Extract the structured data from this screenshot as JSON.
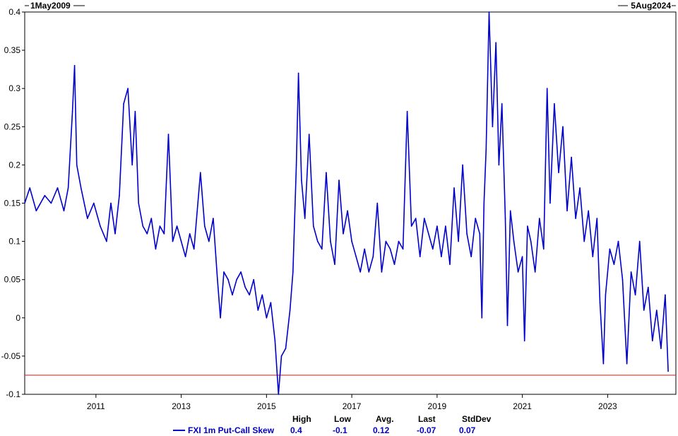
{
  "date_range": {
    "start": "1May2009",
    "end": "5Aug2024"
  },
  "chart_data": {
    "type": "line",
    "title": "",
    "xlabel": "",
    "ylabel": "",
    "ylim": [
      -0.1,
      0.4
    ],
    "xlim": [
      2009.33,
      2024.6
    ],
    "y_ticks": [
      {
        "value": 0.4,
        "label": "0.4"
      },
      {
        "value": 0.35,
        "label": "0.35"
      },
      {
        "value": 0.3,
        "label": "0.3"
      },
      {
        "value": 0.25,
        "label": "0.25"
      },
      {
        "value": 0.2,
        "label": "0.2"
      },
      {
        "value": 0.15,
        "label": "0.15"
      },
      {
        "value": 0.1,
        "label": "0.1"
      },
      {
        "value": 0.05,
        "label": "0.05"
      },
      {
        "value": 0,
        "label": "0"
      },
      {
        "value": -0.05,
        "label": "-0.05"
      },
      {
        "value": -0.1,
        "label": "-0.1"
      }
    ],
    "x_ticks": [
      {
        "value": 2011,
        "label": "2011"
      },
      {
        "value": 2013,
        "label": "2013"
      },
      {
        "value": 2015,
        "label": "2015"
      },
      {
        "value": 2017,
        "label": "2017"
      },
      {
        "value": 2019,
        "label": "2019"
      },
      {
        "value": 2021,
        "label": "2021"
      },
      {
        "value": 2023,
        "label": "2023"
      }
    ],
    "reference_line": {
      "value": -0.075,
      "color": "#c0392b"
    },
    "grid": false,
    "legend_position": "bottom",
    "series": [
      {
        "name": "FXI 1m Put-Call Skew",
        "color": "#0000cc",
        "points": [
          [
            2009.33,
            0.15
          ],
          [
            2009.45,
            0.17
          ],
          [
            2009.6,
            0.14
          ],
          [
            2009.8,
            0.16
          ],
          [
            2009.95,
            0.15
          ],
          [
            2010.1,
            0.17
          ],
          [
            2010.25,
            0.14
          ],
          [
            2010.35,
            0.17
          ],
          [
            2010.45,
            0.27
          ],
          [
            2010.5,
            0.33
          ],
          [
            2010.55,
            0.2
          ],
          [
            2010.65,
            0.17
          ],
          [
            2010.8,
            0.13
          ],
          [
            2010.95,
            0.15
          ],
          [
            2011.1,
            0.12
          ],
          [
            2011.25,
            0.1
          ],
          [
            2011.35,
            0.15
          ],
          [
            2011.45,
            0.11
          ],
          [
            2011.55,
            0.16
          ],
          [
            2011.65,
            0.28
          ],
          [
            2011.75,
            0.3
          ],
          [
            2011.85,
            0.2
          ],
          [
            2011.92,
            0.27
          ],
          [
            2012.0,
            0.15
          ],
          [
            2012.1,
            0.12
          ],
          [
            2012.2,
            0.11
          ],
          [
            2012.3,
            0.13
          ],
          [
            2012.4,
            0.09
          ],
          [
            2012.5,
            0.12
          ],
          [
            2012.6,
            0.11
          ],
          [
            2012.7,
            0.24
          ],
          [
            2012.8,
            0.1
          ],
          [
            2012.9,
            0.12
          ],
          [
            2013.0,
            0.1
          ],
          [
            2013.1,
            0.08
          ],
          [
            2013.2,
            0.11
          ],
          [
            2013.3,
            0.09
          ],
          [
            2013.45,
            0.19
          ],
          [
            2013.55,
            0.12
          ],
          [
            2013.65,
            0.1
          ],
          [
            2013.75,
            0.13
          ],
          [
            2013.85,
            0.05
          ],
          [
            2013.92,
            0.0
          ],
          [
            2014.0,
            0.06
          ],
          [
            2014.1,
            0.05
          ],
          [
            2014.2,
            0.03
          ],
          [
            2014.3,
            0.05
          ],
          [
            2014.4,
            0.06
          ],
          [
            2014.5,
            0.04
          ],
          [
            2014.6,
            0.03
          ],
          [
            2014.7,
            0.05
          ],
          [
            2014.8,
            0.01
          ],
          [
            2014.9,
            0.03
          ],
          [
            2015.0,
            0.0
          ],
          [
            2015.1,
            0.02
          ],
          [
            2015.2,
            -0.03
          ],
          [
            2015.28,
            -0.1
          ],
          [
            2015.35,
            -0.05
          ],
          [
            2015.45,
            -0.04
          ],
          [
            2015.55,
            0.01
          ],
          [
            2015.62,
            0.06
          ],
          [
            2015.7,
            0.2
          ],
          [
            2015.75,
            0.32
          ],
          [
            2015.82,
            0.18
          ],
          [
            2015.9,
            0.13
          ],
          [
            2016.0,
            0.24
          ],
          [
            2016.1,
            0.12
          ],
          [
            2016.2,
            0.1
          ],
          [
            2016.3,
            0.09
          ],
          [
            2016.4,
            0.19
          ],
          [
            2016.5,
            0.1
          ],
          [
            2016.6,
            0.07
          ],
          [
            2016.7,
            0.18
          ],
          [
            2016.8,
            0.11
          ],
          [
            2016.9,
            0.14
          ],
          [
            2017.0,
            0.1
          ],
          [
            2017.1,
            0.08
          ],
          [
            2017.2,
            0.06
          ],
          [
            2017.3,
            0.09
          ],
          [
            2017.4,
            0.06
          ],
          [
            2017.5,
            0.08
          ],
          [
            2017.6,
            0.15
          ],
          [
            2017.7,
            0.06
          ],
          [
            2017.8,
            0.1
          ],
          [
            2017.9,
            0.09
          ],
          [
            2018.0,
            0.07
          ],
          [
            2018.1,
            0.1
          ],
          [
            2018.2,
            0.09
          ],
          [
            2018.3,
            0.27
          ],
          [
            2018.4,
            0.12
          ],
          [
            2018.5,
            0.13
          ],
          [
            2018.6,
            0.08
          ],
          [
            2018.7,
            0.13
          ],
          [
            2018.8,
            0.11
          ],
          [
            2018.9,
            0.09
          ],
          [
            2019.0,
            0.12
          ],
          [
            2019.1,
            0.08
          ],
          [
            2019.2,
            0.12
          ],
          [
            2019.3,
            0.07
          ],
          [
            2019.4,
            0.17
          ],
          [
            2019.5,
            0.1
          ],
          [
            2019.6,
            0.2
          ],
          [
            2019.7,
            0.11
          ],
          [
            2019.8,
            0.08
          ],
          [
            2019.9,
            0.13
          ],
          [
            2020.0,
            0.11
          ],
          [
            2020.05,
            0.0
          ],
          [
            2020.1,
            0.15
          ],
          [
            2020.15,
            0.22
          ],
          [
            2020.22,
            0.4
          ],
          [
            2020.3,
            0.25
          ],
          [
            2020.38,
            0.36
          ],
          [
            2020.45,
            0.2
          ],
          [
            2020.52,
            0.28
          ],
          [
            2020.6,
            0.13
          ],
          [
            2020.65,
            -0.01
          ],
          [
            2020.72,
            0.14
          ],
          [
            2020.8,
            0.1
          ],
          [
            2020.9,
            0.06
          ],
          [
            2021.0,
            0.08
          ],
          [
            2021.05,
            -0.03
          ],
          [
            2021.12,
            0.12
          ],
          [
            2021.2,
            0.1
          ],
          [
            2021.3,
            0.06
          ],
          [
            2021.4,
            0.13
          ],
          [
            2021.5,
            0.09
          ],
          [
            2021.58,
            0.3
          ],
          [
            2021.65,
            0.15
          ],
          [
            2021.75,
            0.28
          ],
          [
            2021.85,
            0.19
          ],
          [
            2021.95,
            0.25
          ],
          [
            2022.05,
            0.14
          ],
          [
            2022.15,
            0.21
          ],
          [
            2022.25,
            0.13
          ],
          [
            2022.35,
            0.17
          ],
          [
            2022.45,
            0.1
          ],
          [
            2022.55,
            0.14
          ],
          [
            2022.65,
            0.08
          ],
          [
            2022.75,
            0.13
          ],
          [
            2022.82,
            0.02
          ],
          [
            2022.9,
            -0.06
          ],
          [
            2022.95,
            0.03
          ],
          [
            2023.05,
            0.09
          ],
          [
            2023.15,
            0.07
          ],
          [
            2023.25,
            0.1
          ],
          [
            2023.35,
            0.05
          ],
          [
            2023.45,
            -0.06
          ],
          [
            2023.55,
            0.06
          ],
          [
            2023.65,
            0.03
          ],
          [
            2023.75,
            0.1
          ],
          [
            2023.85,
            0.01
          ],
          [
            2023.95,
            0.04
          ],
          [
            2024.05,
            -0.03
          ],
          [
            2024.15,
            0.01
          ],
          [
            2024.25,
            -0.04
          ],
          [
            2024.35,
            0.03
          ],
          [
            2024.42,
            -0.07
          ]
        ]
      }
    ],
    "stats": {
      "headers": [
        "High",
        "Low",
        "Avg.",
        "Last",
        "StdDev"
      ],
      "values": [
        "0.4",
        "-0.1",
        "0.12",
        "-0.07",
        "0.07"
      ]
    }
  }
}
